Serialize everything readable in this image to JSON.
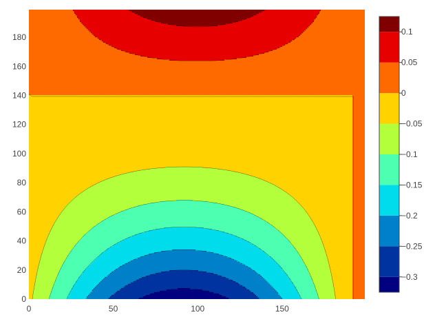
{
  "chart_data": {
    "type": "contour",
    "title": "",
    "xlabel": "",
    "ylabel": "",
    "xlim": [
      0,
      199
    ],
    "ylim": [
      0,
      199
    ],
    "x_ticks": [
      "0",
      "50",
      "100",
      "150"
    ],
    "y_ticks": [
      "0",
      "20",
      "40",
      "60",
      "80",
      "100",
      "120",
      "140",
      "160",
      "180"
    ],
    "colorbar_ticks": [
      "0.1",
      "0.05",
      "0",
      "−0.05",
      "−0.1",
      "−0.15",
      "−0.2",
      "−0.25",
      "−0.3"
    ],
    "colorbar_tick_values": [
      0.1,
      0.05,
      0,
      -0.05,
      -0.1,
      -0.15,
      -0.2,
      -0.25,
      -0.3
    ],
    "contour_levels": [
      -0.325,
      -0.3,
      -0.25,
      -0.2,
      -0.15,
      -0.1,
      -0.05,
      0,
      0.05,
      0.1,
      0.125
    ],
    "colorscale": [
      "#000080",
      "#0033a0",
      "#0080c8",
      "#00dcec",
      "#4dffb0",
      "#b4ff3c",
      "#ffd200",
      "#ff6a00",
      "#e60000",
      "#800000"
    ],
    "contour_line_color": "#000000",
    "grid": false,
    "legend": "colorbar-right"
  }
}
